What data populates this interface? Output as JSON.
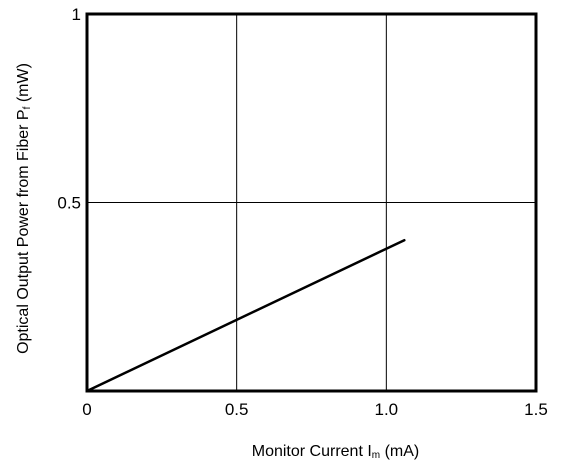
{
  "chart_data": {
    "type": "line",
    "title": "",
    "xlabel": {
      "prefix": "Monitor Current I",
      "subscript": "m",
      "suffix": " (mA)"
    },
    "ylabel": {
      "prefix": "Optical Output Power from Fiber  P",
      "subscript": "f",
      "suffix": " (mW)"
    },
    "xlim": [
      0,
      1.5
    ],
    "ylim": [
      0,
      1
    ],
    "x_ticks": [
      0,
      0.5,
      1.0,
      1.5
    ],
    "x_tick_labels": [
      "0",
      "0.5",
      "1.0",
      "1.5"
    ],
    "y_ticks": [
      0.5,
      1
    ],
    "y_tick_labels": [
      "0.5",
      "1"
    ],
    "grid": true,
    "legend": "none",
    "series": [
      {
        "x": [
          0,
          1.06
        ],
        "y": [
          0,
          0.4
        ]
      }
    ]
  },
  "colors": {
    "line": "#000000",
    "grid": "#000000",
    "frame": "#000000"
  }
}
